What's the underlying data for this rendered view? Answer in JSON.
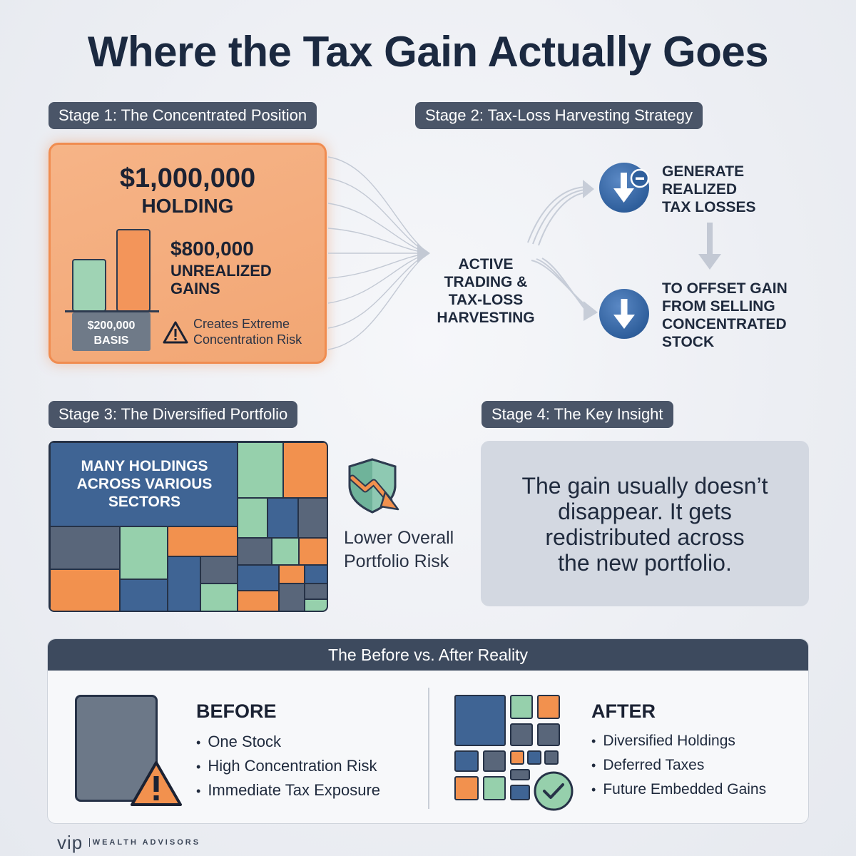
{
  "title": "Where the Tax Gain Actually Goes",
  "stage1": {
    "pill": "Stage 1: The Concentrated Position",
    "holding_amount": "$1,000,000",
    "holding_label": "HOLDING",
    "gains_amount": "$800,000",
    "gains_label_1": "UNREALIZED",
    "gains_label_2": "GAINS",
    "basis_amount": "$200,000",
    "basis_label": "BASIS",
    "warning_line_1": "Creates Extreme",
    "warning_line_2": "Concentration Risk"
  },
  "stage2": {
    "pill": "Stage 2: Tax-Loss Harvesting Strategy",
    "center_line_1": "ACTIVE",
    "center_line_2": "TRADING &",
    "center_line_3": "TAX-LOSS",
    "center_line_4": "HARVESTING",
    "step1_line_1": "GENERATE",
    "step1_line_2": "REALIZED",
    "step1_line_3": "TAX LOSSES",
    "step2_line_1": "TO OFFSET GAIN",
    "step2_line_2": "FROM SELLING",
    "step2_line_3": "CONCENTRATED",
    "step2_line_4": "STOCK"
  },
  "stage3": {
    "pill": "Stage 3: The Diversified Portfolio",
    "treemap_line_1": "MANY HOLDINGS",
    "treemap_line_2": "ACROSS VARIOUS",
    "treemap_line_3": "SECTORS",
    "risk_line_1": "Lower Overall",
    "risk_line_2": "Portfolio Risk"
  },
  "stage4": {
    "pill": "Stage 4: The Key Insight",
    "insight_line_1": "The gain usually doesn’t",
    "insight_line_2": "disappear.  It gets",
    "insight_line_3": "redistributed across",
    "insight_line_4": "the new portfolio."
  },
  "comparison": {
    "header": "The Before vs. After Reality",
    "before": {
      "title": "BEFORE",
      "items": [
        "One Stock",
        "High Concentration Risk",
        "Immediate Tax Exposure"
      ]
    },
    "after": {
      "title": "AFTER",
      "items": [
        "Diversified Holdings",
        "Deferred Taxes",
        "Future Embedded Gains"
      ]
    }
  },
  "logo": {
    "mark": "vip",
    "text": "WEALTH ADVISORS"
  },
  "colors": {
    "navy": "#1b2940",
    "orange": "#f2914e",
    "green": "#96d0ac",
    "blue": "#3f6494",
    "slate": "#59667a"
  }
}
